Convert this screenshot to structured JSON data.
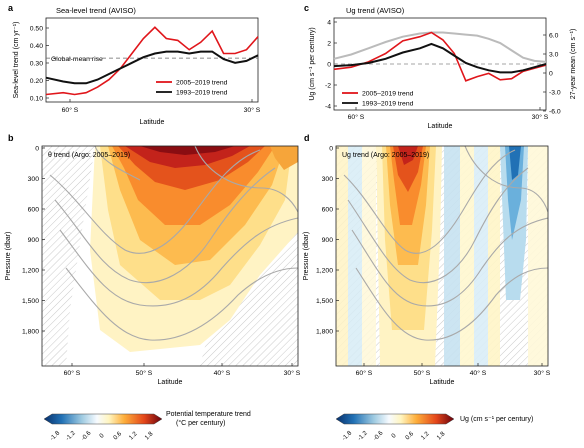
{
  "panels": {
    "a": {
      "letter": "a",
      "title": "Sea-level trend (AVISO)",
      "ylabel": "Sea-level trend (cm yr⁻¹)",
      "xlabel": "Latitude",
      "yticks": [
        "0.50",
        "0.40",
        "0.30",
        "0.20",
        "0.10"
      ],
      "xticks": [
        "60° S",
        "30° S"
      ],
      "annotation": "Global-mean rise",
      "legend": [
        "2005–2019 trend",
        "1993–2019 trend"
      ]
    },
    "b": {
      "letter": "b",
      "title": "θ trend (Argo: 2005–2019)",
      "ylabel": "Pressure (dbar)",
      "xlabel": "Latitude",
      "yticks": [
        "0",
        "300",
        "600",
        "900",
        "1,200",
        "1,500",
        "1,800"
      ],
      "xticks": [
        "60° S",
        "50° S",
        "40° S",
        "30° S"
      ]
    },
    "c": {
      "letter": "c",
      "title": "Ug trend (AVISO)",
      "ylabel": "Ug (cm s⁻¹ per century)",
      "ylabel_right": "27-year mean (cm s⁻¹)",
      "xlabel": "Latitude",
      "yticks": [
        "4",
        "2",
        "0",
        "-2",
        "-4"
      ],
      "yticks_right": [
        "6.0",
        "3.0",
        "0",
        "-3.0",
        "-6.0"
      ],
      "xticks": [
        "60° S",
        "30° S"
      ],
      "legend": [
        "2005–2019 trend",
        "1993–2019 trend"
      ]
    },
    "d": {
      "letter": "d",
      "title": "Ug trend (Argo: 2005–2019)",
      "ylabel": "Pressure (dbar)",
      "xlabel": "Latitude",
      "yticks": [
        "0",
        "300",
        "600",
        "900",
        "1,200",
        "1,500",
        "1,800"
      ],
      "xticks": [
        "60° S",
        "50° S",
        "40° S",
        "30° S"
      ]
    }
  },
  "colorbars": {
    "left": {
      "label_line1": "Potential temperature trend",
      "label_line2": "(°C per century)",
      "ticks": [
        "-1.8",
        "-1.2",
        "-0.6",
        "0",
        "0.6",
        "1.2",
        "1.8"
      ]
    },
    "right": {
      "label": "Ug (cm s⁻¹ per century)",
      "ticks": [
        "-1.8",
        "-1.2",
        "-0.6",
        "0",
        "0.6",
        "1.2",
        "1.8"
      ]
    }
  },
  "colors": {
    "red": "#e0161b",
    "black": "#111111",
    "gray": "#bbbbbb",
    "axis": "#222222"
  },
  "chart_data": [
    {
      "panel": "a",
      "type": "line",
      "xlim": [
        -67,
        -30
      ],
      "ylim": [
        0.1,
        0.55
      ],
      "series": [
        {
          "name": "2005–2019 trend",
          "color": "#e0161b",
          "x": [
            -67,
            -64,
            -62,
            -60,
            -58,
            -56,
            -54,
            -52,
            -50,
            -48,
            -46,
            -44,
            -42,
            -40,
            -38,
            -36,
            -34,
            -32,
            -30
          ],
          "y": [
            0.14,
            0.15,
            0.14,
            0.15,
            0.18,
            0.22,
            0.28,
            0.36,
            0.44,
            0.5,
            0.44,
            0.43,
            0.38,
            0.42,
            0.48,
            0.36,
            0.36,
            0.38,
            0.45
          ]
        },
        {
          "name": "1993–2019 trend",
          "color": "#111111",
          "x": [
            -67,
            -64,
            -62,
            -60,
            -58,
            -56,
            -54,
            -52,
            -50,
            -48,
            -46,
            -44,
            -42,
            -40,
            -38,
            -36,
            -34,
            -32,
            -30
          ],
          "y": [
            0.23,
            0.21,
            0.2,
            0.2,
            0.22,
            0.25,
            0.28,
            0.31,
            0.34,
            0.36,
            0.37,
            0.37,
            0.36,
            0.37,
            0.37,
            0.33,
            0.31,
            0.32,
            0.35
          ]
        },
        {
          "name": "Global-mean rise",
          "color": "#666666",
          "x": [
            -67,
            -30
          ],
          "y": [
            0.335,
            0.335
          ]
        }
      ]
    },
    {
      "panel": "c",
      "type": "line",
      "xlim": [
        -67,
        -30
      ],
      "ylim": [
        -4,
        4
      ],
      "series": [
        {
          "name": "2005–2019 trend",
          "color": "#e0161b",
          "x": [
            -67,
            -64,
            -61,
            -58,
            -55,
            -52,
            -50,
            -48,
            -46,
            -44,
            -42,
            -40,
            -38,
            -36,
            -34,
            -32,
            -30
          ],
          "y": [
            -0.5,
            -0.3,
            0.2,
            1.0,
            2.2,
            2.6,
            3.0,
            2.3,
            1.0,
            -1.6,
            -1.2,
            -0.9,
            -1.5,
            -1.4,
            -0.7,
            -0.4,
            -0.1
          ]
        },
        {
          "name": "1993–2019 trend",
          "color": "#111111",
          "x": [
            -67,
            -64,
            -61,
            -58,
            -55,
            -52,
            -50,
            -48,
            -46,
            -44,
            -42,
            -40,
            -38,
            -36,
            -34,
            -32,
            -30
          ],
          "y": [
            -0.2,
            -0.1,
            0.1,
            0.5,
            1.1,
            1.5,
            1.9,
            1.5,
            0.8,
            0.1,
            -0.3,
            -0.6,
            -0.8,
            -0.8,
            -0.6,
            -0.3,
            0.0
          ]
        },
        {
          "name": "27-year mean",
          "color": "#bbbbbb",
          "x": [
            -67,
            -64,
            -61,
            -58,
            -55,
            -52,
            -50,
            -48,
            -46,
            -44,
            -42,
            -40,
            -38,
            -36,
            -34,
            -32,
            -30
          ],
          "y": [
            0.5,
            0.9,
            1.5,
            2.1,
            2.6,
            2.9,
            3.0,
            3.0,
            2.9,
            2.8,
            2.7,
            2.4,
            2.0,
            1.3,
            0.6,
            0.3,
            0.2
          ]
        }
      ]
    }
  ]
}
